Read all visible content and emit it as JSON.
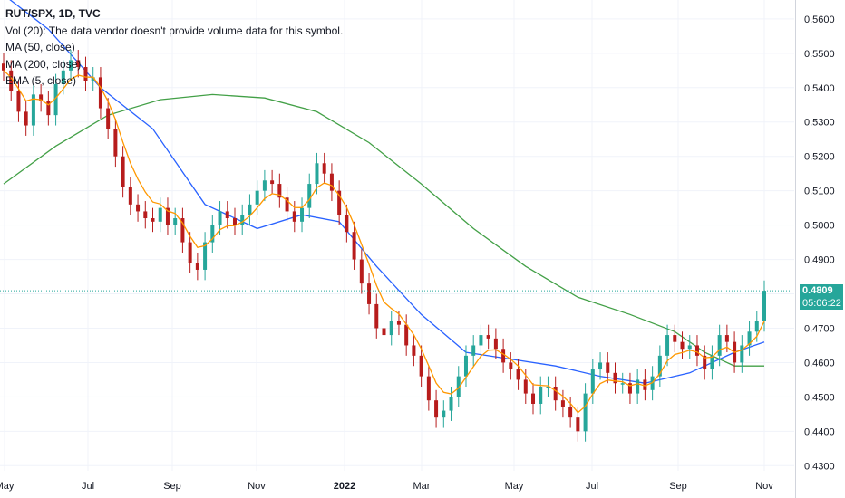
{
  "legend": {
    "title": "RUT/SPX, 1D, TVC",
    "vol": "Vol (20): The data vendor doesn't provide volume data for this symbol.",
    "ma50": "MA (50, close)",
    "ma200": "MA (200, close)",
    "ema": "EMA (5, close)"
  },
  "last_price": {
    "value": "0.4809",
    "countdown": "05:06:22"
  },
  "colors": {
    "up": "#26a69a",
    "down": "#ef5350",
    "ma50": "#2962ff",
    "ma200": "#43a047",
    "ema": "#ff9800",
    "grid": "#f0f3fa",
    "bar_up": "#26a69a",
    "bar_down": "#b71c1c"
  },
  "chart_data": {
    "type": "line",
    "symbol": "RUT/SPX",
    "interval": "1D",
    "x_ticks": [
      "May",
      "Jul",
      "Sep",
      "Nov",
      "2022",
      "Mar",
      "May",
      "Jul",
      "Sep",
      "Nov"
    ],
    "y_ticks": [
      "0.5600",
      "0.5500",
      "0.5400",
      "0.5300",
      "0.5200",
      "0.5100",
      "0.5000",
      "0.4900",
      "0.4800",
      "0.4700",
      "0.4600",
      "0.4500",
      "0.4400",
      "0.4300"
    ],
    "ylim": [
      0.4285,
      0.5655
    ],
    "price_close": [
      [
        0,
        0.545
      ],
      [
        1,
        0.539
      ],
      [
        2,
        0.533
      ],
      [
        3,
        0.529
      ],
      [
        4,
        0.538
      ],
      [
        5,
        0.536
      ],
      [
        6,
        0.532
      ],
      [
        7,
        0.541
      ],
      [
        8,
        0.545
      ],
      [
        9,
        0.548
      ],
      [
        10,
        0.546
      ],
      [
        11,
        0.542
      ],
      [
        12,
        0.543
      ],
      [
        13,
        0.534
      ],
      [
        14,
        0.528
      ],
      [
        15,
        0.52
      ],
      [
        16,
        0.511
      ],
      [
        17,
        0.506
      ],
      [
        18,
        0.504
      ],
      [
        19,
        0.502
      ],
      [
        20,
        0.501
      ],
      [
        21,
        0.505
      ],
      [
        22,
        0.5
      ],
      [
        23,
        0.502
      ],
      [
        24,
        0.495
      ],
      [
        25,
        0.489
      ],
      [
        26,
        0.487
      ],
      [
        27,
        0.495
      ],
      [
        28,
        0.5
      ],
      [
        29,
        0.504
      ],
      [
        30,
        0.502
      ],
      [
        31,
        0.5
      ],
      [
        32,
        0.503
      ],
      [
        33,
        0.506
      ],
      [
        34,
        0.51
      ],
      [
        35,
        0.513
      ],
      [
        36,
        0.512
      ],
      [
        37,
        0.508
      ],
      [
        38,
        0.504
      ],
      [
        39,
        0.501
      ],
      [
        40,
        0.505
      ],
      [
        41,
        0.512
      ],
      [
        42,
        0.518
      ],
      [
        43,
        0.515
      ],
      [
        44,
        0.51
      ],
      [
        45,
        0.503
      ],
      [
        46,
        0.498
      ],
      [
        47,
        0.49
      ],
      [
        48,
        0.483
      ],
      [
        49,
        0.477
      ],
      [
        50,
        0.47
      ],
      [
        51,
        0.468
      ],
      [
        52,
        0.472
      ],
      [
        53,
        0.471
      ],
      [
        54,
        0.465
      ],
      [
        55,
        0.462
      ],
      [
        56,
        0.456
      ],
      [
        57,
        0.449
      ],
      [
        58,
        0.444
      ],
      [
        59,
        0.446
      ],
      [
        60,
        0.45
      ],
      [
        61,
        0.456
      ],
      [
        62,
        0.462
      ],
      [
        63,
        0.465
      ],
      [
        64,
        0.468
      ],
      [
        65,
        0.467
      ],
      [
        66,
        0.464
      ],
      [
        67,
        0.46
      ],
      [
        68,
        0.458
      ],
      [
        69,
        0.455
      ],
      [
        70,
        0.451
      ],
      [
        71,
        0.448
      ],
      [
        72,
        0.453
      ],
      [
        73,
        0.453
      ],
      [
        74,
        0.449
      ],
      [
        75,
        0.447
      ],
      [
        76,
        0.444
      ],
      [
        77,
        0.44
      ],
      [
        78,
        0.451
      ],
      [
        79,
        0.458
      ],
      [
        80,
        0.46
      ],
      [
        81,
        0.457
      ],
      [
        82,
        0.454
      ],
      [
        83,
        0.454
      ],
      [
        84,
        0.451
      ],
      [
        85,
        0.455
      ],
      [
        86,
        0.452
      ],
      [
        87,
        0.456
      ],
      [
        88,
        0.462
      ],
      [
        89,
        0.468
      ],
      [
        90,
        0.466
      ],
      [
        91,
        0.464
      ],
      [
        92,
        0.465
      ],
      [
        93,
        0.462
      ],
      [
        94,
        0.458
      ],
      [
        95,
        0.462
      ],
      [
        96,
        0.468
      ],
      [
        97,
        0.466
      ],
      [
        98,
        0.46
      ],
      [
        99,
        0.465
      ],
      [
        100,
        0.469
      ],
      [
        101,
        0.472
      ],
      [
        102,
        0.4809
      ]
    ],
    "ma50": [
      [
        0,
        0.567
      ],
      [
        6,
        0.557
      ],
      [
        13,
        0.54
      ],
      [
        20,
        0.528
      ],
      [
        27,
        0.506
      ],
      [
        34,
        0.499
      ],
      [
        40,
        0.503
      ],
      [
        45,
        0.501
      ],
      [
        50,
        0.488
      ],
      [
        56,
        0.474
      ],
      [
        62,
        0.463
      ],
      [
        68,
        0.461
      ],
      [
        74,
        0.459
      ],
      [
        80,
        0.456
      ],
      [
        86,
        0.454
      ],
      [
        92,
        0.457
      ],
      [
        98,
        0.463
      ],
      [
        102,
        0.466
      ]
    ],
    "ma200": [
      [
        0,
        0.512
      ],
      [
        7,
        0.523
      ],
      [
        14,
        0.532
      ],
      [
        21,
        0.5365
      ],
      [
        28,
        0.538
      ],
      [
        35,
        0.537
      ],
      [
        42,
        0.533
      ],
      [
        49,
        0.524
      ],
      [
        56,
        0.512
      ],
      [
        63,
        0.499
      ],
      [
        70,
        0.488
      ],
      [
        77,
        0.479
      ],
      [
        84,
        0.474
      ],
      [
        90,
        0.469
      ],
      [
        94,
        0.463
      ],
      [
        98,
        0.459
      ],
      [
        102,
        0.459
      ]
    ],
    "grid": true,
    "legend_position": "top-left"
  }
}
